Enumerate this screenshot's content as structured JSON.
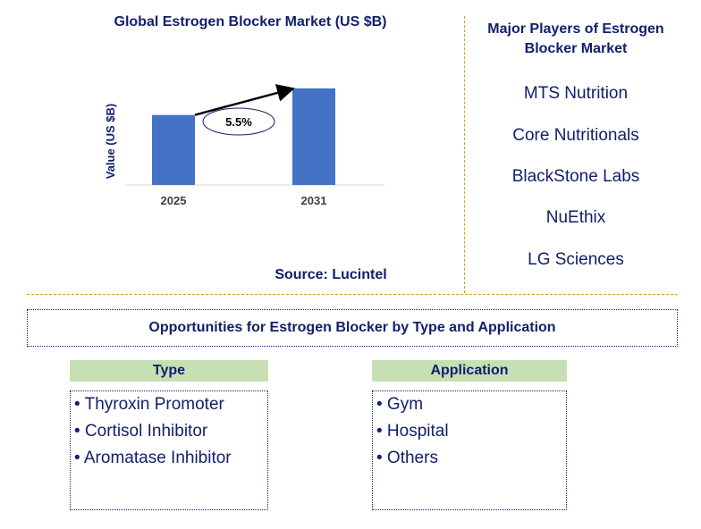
{
  "chart_data": {
    "type": "bar",
    "title": "Global Estrogen Blocker Market (US $B)",
    "ylabel": "Value (US $B)",
    "xlabel": "",
    "categories": [
      "2025",
      "2031"
    ],
    "values": [
      1.0,
      1.38
    ],
    "ylim": [
      0,
      1.8
    ],
    "cagr_label": "5.5%",
    "source": "Source: Lucintel",
    "colors": {
      "bar": "#4472c4",
      "text": "#13206a"
    }
  },
  "players": {
    "title": "Major Players of Estrogen Blocker Market",
    "items": [
      "MTS Nutrition",
      "Core Nutritionals",
      "BlackStone Labs",
      "NuEthix",
      "LG Sciences"
    ]
  },
  "opportunities": {
    "title": "Opportunities for Estrogen Blocker by Type and Application",
    "type": {
      "header": "Type",
      "items": [
        "• Thyroxin Promoter",
        "• Cortisol Inhibitor",
        "• Aromatase Inhibitor"
      ]
    },
    "application": {
      "header": "Application",
      "items": [
        "• Gym",
        "• Hospital",
        "• Others"
      ]
    }
  }
}
